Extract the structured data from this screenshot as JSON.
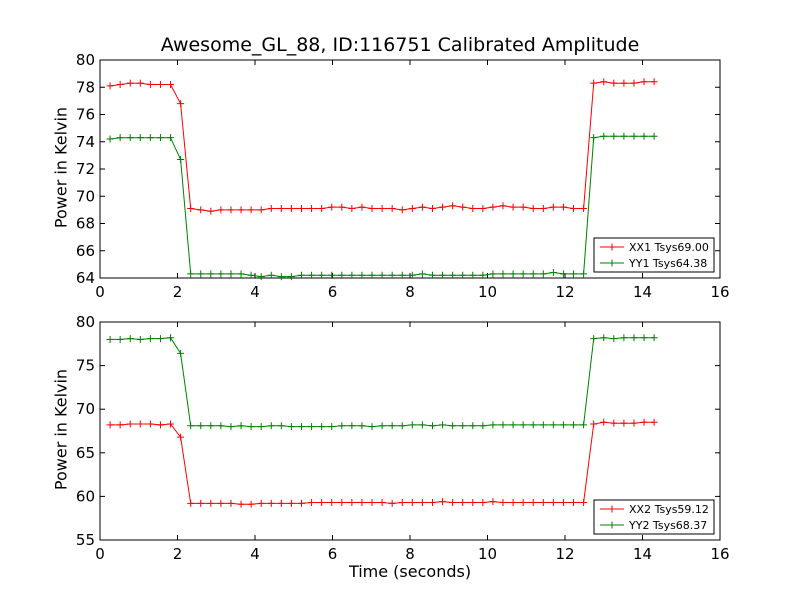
{
  "figure": {
    "title": "Awesome_GL_88, ID:116751 Calibrated Amplitude",
    "xlabel": "Time (seconds)"
  },
  "colors": {
    "red": "#ff0000",
    "green": "#008000"
  },
  "chart_data": [
    {
      "type": "line",
      "ylabel": "Power in Kelvin",
      "xlim": [
        0,
        16
      ],
      "ylim": [
        64,
        80
      ],
      "xticks": [
        0,
        2,
        4,
        6,
        8,
        10,
        12,
        14,
        16
      ],
      "yticks": [
        64,
        66,
        68,
        70,
        72,
        74,
        76,
        78,
        80
      ],
      "legend_position": "lower-right",
      "x": [
        0.26,
        0.52,
        0.78,
        1.04,
        1.3,
        1.56,
        1.82,
        2.08,
        2.34,
        2.6,
        2.86,
        3.12,
        3.38,
        3.64,
        3.9,
        4.16,
        4.42,
        4.68,
        4.94,
        5.2,
        5.46,
        5.72,
        5.98,
        6.24,
        6.5,
        6.76,
        7.02,
        7.28,
        7.54,
        7.8,
        8.06,
        8.32,
        8.58,
        8.84,
        9.1,
        9.36,
        9.62,
        9.88,
        10.14,
        10.4,
        10.66,
        10.92,
        11.18,
        11.44,
        11.7,
        11.96,
        12.22,
        12.48,
        12.74,
        13.0,
        13.26,
        13.52,
        13.78,
        14.04,
        14.3
      ],
      "series": [
        {
          "name": "XX1 Tsys69.00",
          "color": "#ff0000",
          "values": [
            78.1,
            78.2,
            78.3,
            78.3,
            78.2,
            78.2,
            78.2,
            76.8,
            69.1,
            69.0,
            68.9,
            69.0,
            69.0,
            69.0,
            69.0,
            69.0,
            69.1,
            69.1,
            69.1,
            69.1,
            69.1,
            69.1,
            69.2,
            69.2,
            69.1,
            69.2,
            69.1,
            69.1,
            69.1,
            69.0,
            69.1,
            69.2,
            69.1,
            69.2,
            69.3,
            69.2,
            69.1,
            69.1,
            69.2,
            69.3,
            69.2,
            69.2,
            69.1,
            69.1,
            69.2,
            69.2,
            69.1,
            69.1,
            78.3,
            78.4,
            78.3,
            78.3,
            78.3,
            78.4,
            78.4
          ]
        },
        {
          "name": "YY1 Tsys64.38",
          "color": "#008000",
          "values": [
            74.2,
            74.3,
            74.3,
            74.3,
            74.3,
            74.3,
            74.3,
            72.7,
            64.3,
            64.3,
            64.3,
            64.3,
            64.3,
            64.3,
            64.2,
            64.1,
            64.2,
            64.1,
            64.1,
            64.2,
            64.2,
            64.2,
            64.2,
            64.2,
            64.2,
            64.2,
            64.2,
            64.2,
            64.2,
            64.2,
            64.2,
            64.3,
            64.2,
            64.2,
            64.2,
            64.2,
            64.2,
            64.2,
            64.3,
            64.3,
            64.3,
            64.3,
            64.3,
            64.3,
            64.4,
            64.3,
            64.3,
            64.3,
            74.3,
            74.4,
            74.4,
            74.4,
            74.4,
            74.4,
            74.4
          ]
        }
      ]
    },
    {
      "type": "line",
      "ylabel": "Power in Kelvin",
      "xlim": [
        0,
        16
      ],
      "ylim": [
        55,
        80
      ],
      "xticks": [
        0,
        2,
        4,
        6,
        8,
        10,
        12,
        14,
        16
      ],
      "yticks": [
        55,
        60,
        65,
        70,
        75,
        80
      ],
      "legend_position": "lower-right",
      "x": [
        0.26,
        0.52,
        0.78,
        1.04,
        1.3,
        1.56,
        1.82,
        2.08,
        2.34,
        2.6,
        2.86,
        3.12,
        3.38,
        3.64,
        3.9,
        4.16,
        4.42,
        4.68,
        4.94,
        5.2,
        5.46,
        5.72,
        5.98,
        6.24,
        6.5,
        6.76,
        7.02,
        7.28,
        7.54,
        7.8,
        8.06,
        8.32,
        8.58,
        8.84,
        9.1,
        9.36,
        9.62,
        9.88,
        10.14,
        10.4,
        10.66,
        10.92,
        11.18,
        11.44,
        11.7,
        11.96,
        12.22,
        12.48,
        12.74,
        13.0,
        13.26,
        13.52,
        13.78,
        14.04,
        14.3
      ],
      "series": [
        {
          "name": "XX2 Tsys59.12",
          "color": "#ff0000",
          "values": [
            68.2,
            68.2,
            68.3,
            68.3,
            68.3,
            68.2,
            68.3,
            66.8,
            59.2,
            59.2,
            59.2,
            59.2,
            59.2,
            59.1,
            59.1,
            59.2,
            59.2,
            59.2,
            59.2,
            59.2,
            59.3,
            59.3,
            59.3,
            59.3,
            59.3,
            59.3,
            59.3,
            59.3,
            59.2,
            59.3,
            59.3,
            59.3,
            59.3,
            59.4,
            59.3,
            59.3,
            59.3,
            59.3,
            59.4,
            59.3,
            59.3,
            59.3,
            59.3,
            59.3,
            59.3,
            59.3,
            59.3,
            59.3,
            68.3,
            68.5,
            68.4,
            68.4,
            68.4,
            68.5,
            68.5
          ]
        },
        {
          "name": "YY2 Tsys68.37",
          "color": "#008000",
          "values": [
            78.0,
            78.0,
            78.1,
            78.0,
            78.1,
            78.1,
            78.2,
            76.4,
            68.1,
            68.1,
            68.1,
            68.1,
            68.0,
            68.1,
            68.0,
            68.0,
            68.1,
            68.1,
            68.0,
            68.0,
            68.0,
            68.0,
            68.0,
            68.1,
            68.1,
            68.1,
            68.0,
            68.1,
            68.1,
            68.1,
            68.2,
            68.2,
            68.1,
            68.2,
            68.1,
            68.1,
            68.1,
            68.1,
            68.2,
            68.2,
            68.2,
            68.2,
            68.2,
            68.2,
            68.2,
            68.2,
            68.2,
            68.2,
            78.1,
            78.2,
            78.1,
            78.2,
            78.2,
            78.2,
            78.2
          ]
        }
      ]
    }
  ]
}
